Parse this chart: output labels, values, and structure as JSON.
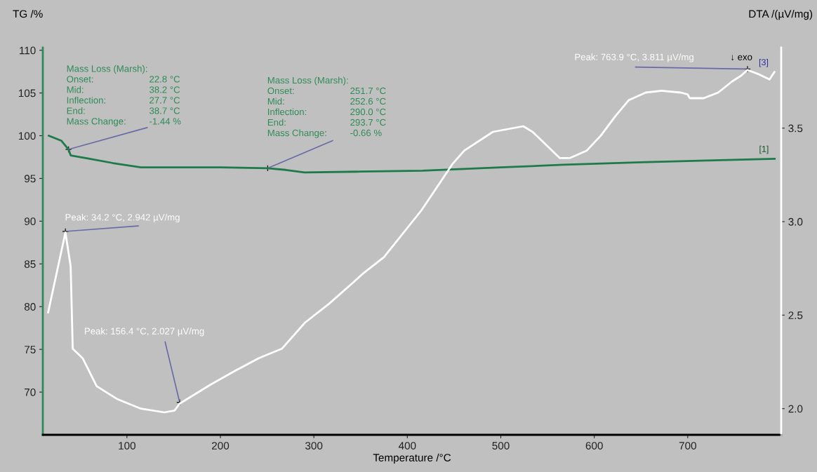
{
  "chart_data": {
    "type": "line",
    "xlabel": "Temperature /°C",
    "ylabel": "TG /%",
    "y2label": "DTA /(µV/mg)",
    "xlim": [
      10,
      800
    ],
    "xticks": [
      100,
      200,
      300,
      400,
      500,
      600,
      700
    ],
    "ylim": [
      65,
      110.3
    ],
    "yticks": [
      70,
      75,
      80,
      85,
      90,
      95,
      100,
      105,
      110
    ],
    "y2lim": [
      1.86,
      3.93
    ],
    "y2ticks": [
      {
        "value": 2,
        "label": "2.0"
      },
      2.5,
      {
        "value": 3,
        "label": "3.0"
      },
      3.5
    ],
    "grid": false,
    "legend": false,
    "marker": "none",
    "line_style": "solid",
    "series": [
      {
        "name": "[1]",
        "color": "#1e7a4a",
        "x": [
          16.4,
          30,
          37.5,
          39.8,
          60,
          85,
          115,
          150,
          200,
          250.6,
          270,
          290,
          350,
          416,
          500,
          567,
          650,
          720,
          793
        ],
        "values": [
          100,
          99.4,
          98.4,
          97.7,
          97.3,
          96.8,
          96.3,
          96.3,
          96.3,
          96.2,
          96.0,
          95.7,
          95.8,
          95.9,
          96.3,
          96.6,
          96.9,
          97.1,
          97.3
        ]
      },
      {
        "name": "[3]",
        "color": "#ffffff",
        "axis": "y2",
        "x": [
          15.7,
          34.2,
          39.8,
          42,
          52.6,
          67.6,
          90,
          115,
          140,
          151,
          156.4,
          190,
          215,
          241,
          265.7,
          290.5,
          316,
          341,
          352,
          375,
          415,
          448.6,
          461,
          491.6,
          524,
          534,
          546.5,
          563,
          574,
          592,
          607,
          622,
          637,
          655,
          672,
          692.6,
          700,
          702,
          717,
          732.5,
          747.6,
          757,
          763.9,
          775,
          787.5,
          792.7
        ],
        "values": [
          2.515,
          2.942,
          2.76,
          2.32,
          2.27,
          2.12,
          2.05,
          2.0,
          1.98,
          1.99,
          2.027,
          2.13,
          2.2,
          2.27,
          2.32,
          2.46,
          2.56,
          2.67,
          2.72,
          2.81,
          3.06,
          3.31,
          3.38,
          3.48,
          3.51,
          3.48,
          3.42,
          3.34,
          3.34,
          3.38,
          3.46,
          3.56,
          3.65,
          3.69,
          3.7,
          3.69,
          3.68,
          3.66,
          3.66,
          3.69,
          3.75,
          3.78,
          3.811,
          3.79,
          3.76,
          3.8
        ]
      }
    ],
    "annotations": [
      "Mass Loss (Marsh):",
      "Onset:",
      "22.8 °C",
      "Mid:",
      "38.2 °C",
      "Inflection:",
      "27.7 °C",
      "End:",
      "38.7 °C",
      "Mass Change:",
      {
        "text": "-1.44 %",
        "x": 37.5,
        "y": 98.4
      },
      "Mass Loss (Marsh):",
      "Onset:",
      "251.7 °C",
      "Mid:",
      "252.6 °C",
      "Inflection:",
      "290.0 °C",
      "End:",
      "293.7 °C",
      {
        "text": "Mass Change:",
        "x": 250.6,
        "y": 96.2
      },
      "-0.66 %",
      {
        "text": "Peak: 34.2 °C, 2.942 µV/mg",
        "x": 34.2,
        "y": 88.8
      },
      {
        "text": "Peak: 156.4 °C, 2.027 µV/mg",
        "x": 156.4,
        "y": 68.8
      },
      {
        "text": "Peak: 763.9 °C, 3.811 µV/mg",
        "x": 763.9,
        "y": 107.8
      },
      "↓ exo"
    ]
  }
}
